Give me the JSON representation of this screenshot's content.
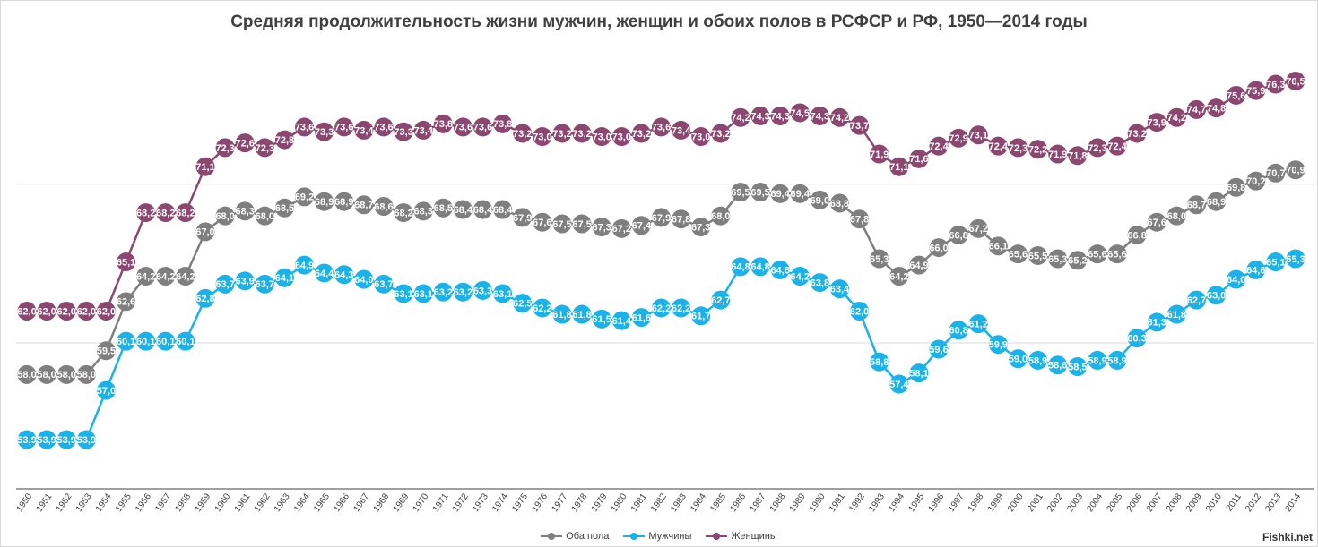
{
  "chart_data": {
    "type": "line",
    "title": "Средняя продолжительность жизни мужчин, женщин и обоих полов в РСФСР и РФ, 1950—2014 годы",
    "xlabel": "",
    "ylabel": "",
    "ylim": [
      50.8,
      79.8
    ],
    "grid": true,
    "legend_position": "bottom",
    "x": [
      1950,
      1951,
      1952,
      1953,
      1954,
      1955,
      1956,
      1957,
      1958,
      1959,
      1960,
      1961,
      1962,
      1963,
      1964,
      1965,
      1966,
      1967,
      1968,
      1969,
      1970,
      1971,
      1972,
      1973,
      1974,
      1975,
      1976,
      1977,
      1978,
      1979,
      1980,
      1981,
      1982,
      1983,
      1984,
      1985,
      1986,
      1987,
      1988,
      1989,
      1990,
      1991,
      1992,
      1993,
      1994,
      1995,
      1996,
      1997,
      1998,
      1999,
      2000,
      2001,
      2002,
      2003,
      2004,
      2005,
      2006,
      2007,
      2008,
      2009,
      2010,
      2011,
      2012,
      2013,
      2014
    ],
    "series": [
      {
        "name": "Оба пола",
        "color": "#7f7f7f",
        "values": [
          58.0,
          58.0,
          58.0,
          58.0,
          59.5,
          62.6,
          64.2,
          64.2,
          64.2,
          67.0,
          68.0,
          68.3,
          68.0,
          68.5,
          69.2,
          68.9,
          68.9,
          68.7,
          68.6,
          68.2,
          68.3,
          68.5,
          68.4,
          68.4,
          68.4,
          67.9,
          67.6,
          67.5,
          67.5,
          67.3,
          67.2,
          67.4,
          67.9,
          67.8,
          67.3,
          68.0,
          69.5,
          69.5,
          69.4,
          69.4,
          69.0,
          68.8,
          67.8,
          65.3,
          64.2,
          64.9,
          66.0,
          66.8,
          67.2,
          66.1,
          65.6,
          65.5,
          65.3,
          65.2,
          65.6,
          65.6,
          66.8,
          67.6,
          68.0,
          68.7,
          68.9,
          69.8,
          70.2,
          70.7,
          70.9
        ],
        "labels": [
          "58,0",
          "58,0",
          "58,0",
          "58,0",
          "59,5",
          "62,6",
          "64,2",
          "64,2",
          "64,2",
          "67,0",
          "68,0",
          "68,3",
          "68,0",
          "68,5",
          "69,2",
          "68,9",
          "68,9",
          "68,7",
          "68,6",
          "68,2",
          "68,3",
          "68,5",
          "68,4",
          "68,4",
          "68,4",
          "67,9",
          "67,6",
          "67,5",
          "67,5",
          "67,3",
          "67,2",
          "67,4",
          "67,9",
          "67,8",
          "67,3",
          "68,0",
          "69,5",
          "69,5",
          "69,4",
          "69,4",
          "69,0",
          "68,8",
          "67,8",
          "65,3",
          "64,2",
          "64,9",
          "66,0",
          "66,8",
          "67,2",
          "66,1",
          "65,6",
          "65,5",
          "65,3",
          "65,2",
          "65,6",
          "65,6",
          "66,8",
          "67,6",
          "68,0",
          "68,7",
          "68,9",
          "69,8",
          "70,2",
          "70,7",
          "70,9"
        ]
      },
      {
        "name": "Мужчины",
        "color": "#1ab2e8",
        "values": [
          53.9,
          53.9,
          53.9,
          53.9,
          57.0,
          60.1,
          60.1,
          60.1,
          60.1,
          62.8,
          63.7,
          63.9,
          63.7,
          64.1,
          64.9,
          64.4,
          64.3,
          64.0,
          63.7,
          63.1,
          63.1,
          63.2,
          63.2,
          63.3,
          63.1,
          62.5,
          62.2,
          61.8,
          61.8,
          61.5,
          61.4,
          61.6,
          62.2,
          62.2,
          61.7,
          62.7,
          64.8,
          64.8,
          64.6,
          64.2,
          63.8,
          63.4,
          62.0,
          58.8,
          57.4,
          58.1,
          59.6,
          60.8,
          61.2,
          59.9,
          59.0,
          58.9,
          58.6,
          58.5,
          58.9,
          58.9,
          60.3,
          61.3,
          61.8,
          62.7,
          63.0,
          64.0,
          64.6,
          65.1,
          65.3
        ],
        "labels": [
          "53,9",
          "53,9",
          "53,9",
          "53,9",
          "57,0",
          "60,1",
          "60,1",
          "60,1",
          "60,1",
          "62,8",
          "63,7",
          "63,9",
          "63,7",
          "64,1",
          "64,9",
          "64,4",
          "64,3",
          "64,0",
          "63,7",
          "63,1",
          "63,1",
          "63,2",
          "63,2",
          "63,3",
          "63,1",
          "62,5",
          "62,2",
          "61,8",
          "61,8",
          "61,5",
          "61,4",
          "61,6",
          "62,2",
          "62,2",
          "61,7",
          "62,7",
          "64,8",
          "64,8",
          "64,6",
          "64,2",
          "63,8",
          "63,4",
          "62,0",
          "58,8",
          "57,4",
          "58,1",
          "59,6",
          "60,8",
          "61,2",
          "59,9",
          "59,0",
          "58,9",
          "58,6",
          "58,5",
          "58,9",
          "58,9",
          "60,3",
          "61,3",
          "61,8",
          "62,7",
          "63,0",
          "64,0",
          "64,6",
          "65,1",
          "65,3"
        ]
      },
      {
        "name": "Женщины",
        "color": "#8c4770",
        "values": [
          62.0,
          62.0,
          62.0,
          62.0,
          62.0,
          65.1,
          68.2,
          68.2,
          68.2,
          71.1,
          72.3,
          72.6,
          72.3,
          72.8,
          73.6,
          73.3,
          73.6,
          73.4,
          73.6,
          73.3,
          73.4,
          73.8,
          73.6,
          73.6,
          73.8,
          73.2,
          73.0,
          73.2,
          73.2,
          73.0,
          73.0,
          73.2,
          73.6,
          73.4,
          73.0,
          73.2,
          74.2,
          74.3,
          74.3,
          74.5,
          74.3,
          74.2,
          73.7,
          71.9,
          71.1,
          71.6,
          72.4,
          72.9,
          73.1,
          72.4,
          72.3,
          72.2,
          71.9,
          71.8,
          72.3,
          72.4,
          73.2,
          73.9,
          74.2,
          74.7,
          74.8,
          75.6,
          75.9,
          76.3,
          76.5
        ],
        "labels": [
          "62,0",
          "62,0",
          "62,0",
          "62,0",
          "62,0",
          "65,1",
          "68,2",
          "68,2",
          "68,2",
          "71,1",
          "72,3",
          "72,6",
          "72,3",
          "72,8",
          "73,6",
          "73,3",
          "73,6",
          "73,4",
          "73,6",
          "73,3",
          "73,4",
          "73,8",
          "73,6",
          "73,6",
          "73,8",
          "73,2",
          "73,0",
          "73,2",
          "73,2",
          "73,0",
          "73,0",
          "73,2",
          "73,6",
          "73,4",
          "73,0",
          "73,2",
          "74,2",
          "74,3",
          "74,3",
          "74,5",
          "74,3",
          "74,2",
          "73,7",
          "71,9",
          "71,1",
          "71,6",
          "72,4",
          "72,9",
          "73,1",
          "72,4",
          "72,3",
          "72,2",
          "71,9",
          "71,8",
          "72,3",
          "72,4",
          "73,2",
          "73,9",
          "74,2",
          "74,7",
          "74,8",
          "75,6",
          "75,9",
          "76,3",
          "76,5"
        ]
      }
    ]
  },
  "watermark": "Fishki.net"
}
